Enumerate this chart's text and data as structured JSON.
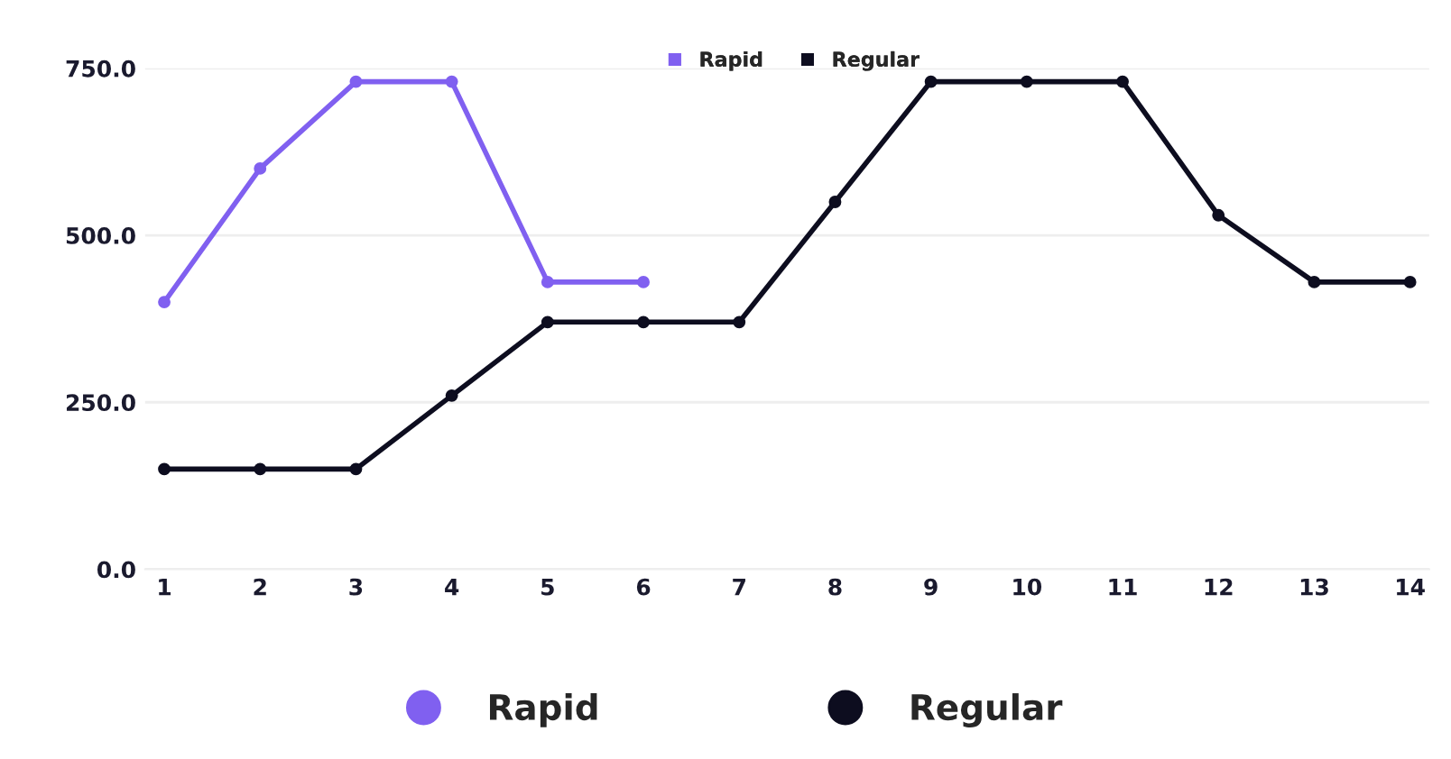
{
  "chart_data": {
    "type": "line",
    "categories": [
      "1",
      "2",
      "3",
      "4",
      "5",
      "6",
      "7",
      "8",
      "9",
      "10",
      "11",
      "12",
      "13",
      "14"
    ],
    "series": [
      {
        "name": "Rapid",
        "color": "#8060f0",
        "values": [
          400,
          600,
          730,
          730,
          430,
          430,
          null,
          null,
          null,
          null,
          null,
          null,
          null,
          null
        ]
      },
      {
        "name": "Regular",
        "color": "#0d0d1f",
        "values": [
          150,
          150,
          150,
          260,
          370,
          370,
          370,
          550,
          730,
          730,
          730,
          530,
          430,
          430
        ]
      }
    ],
    "ylim": [
      0,
      750
    ],
    "yticks": [
      {
        "value": 0,
        "label": "0.0"
      },
      {
        "value": 250,
        "label": "250.0"
      },
      {
        "value": 500,
        "label": "500.0"
      },
      {
        "value": 750,
        "label": "750.0"
      }
    ],
    "grid": "y",
    "legend": "top",
    "marker": "circle",
    "line_style": "solid"
  }
}
